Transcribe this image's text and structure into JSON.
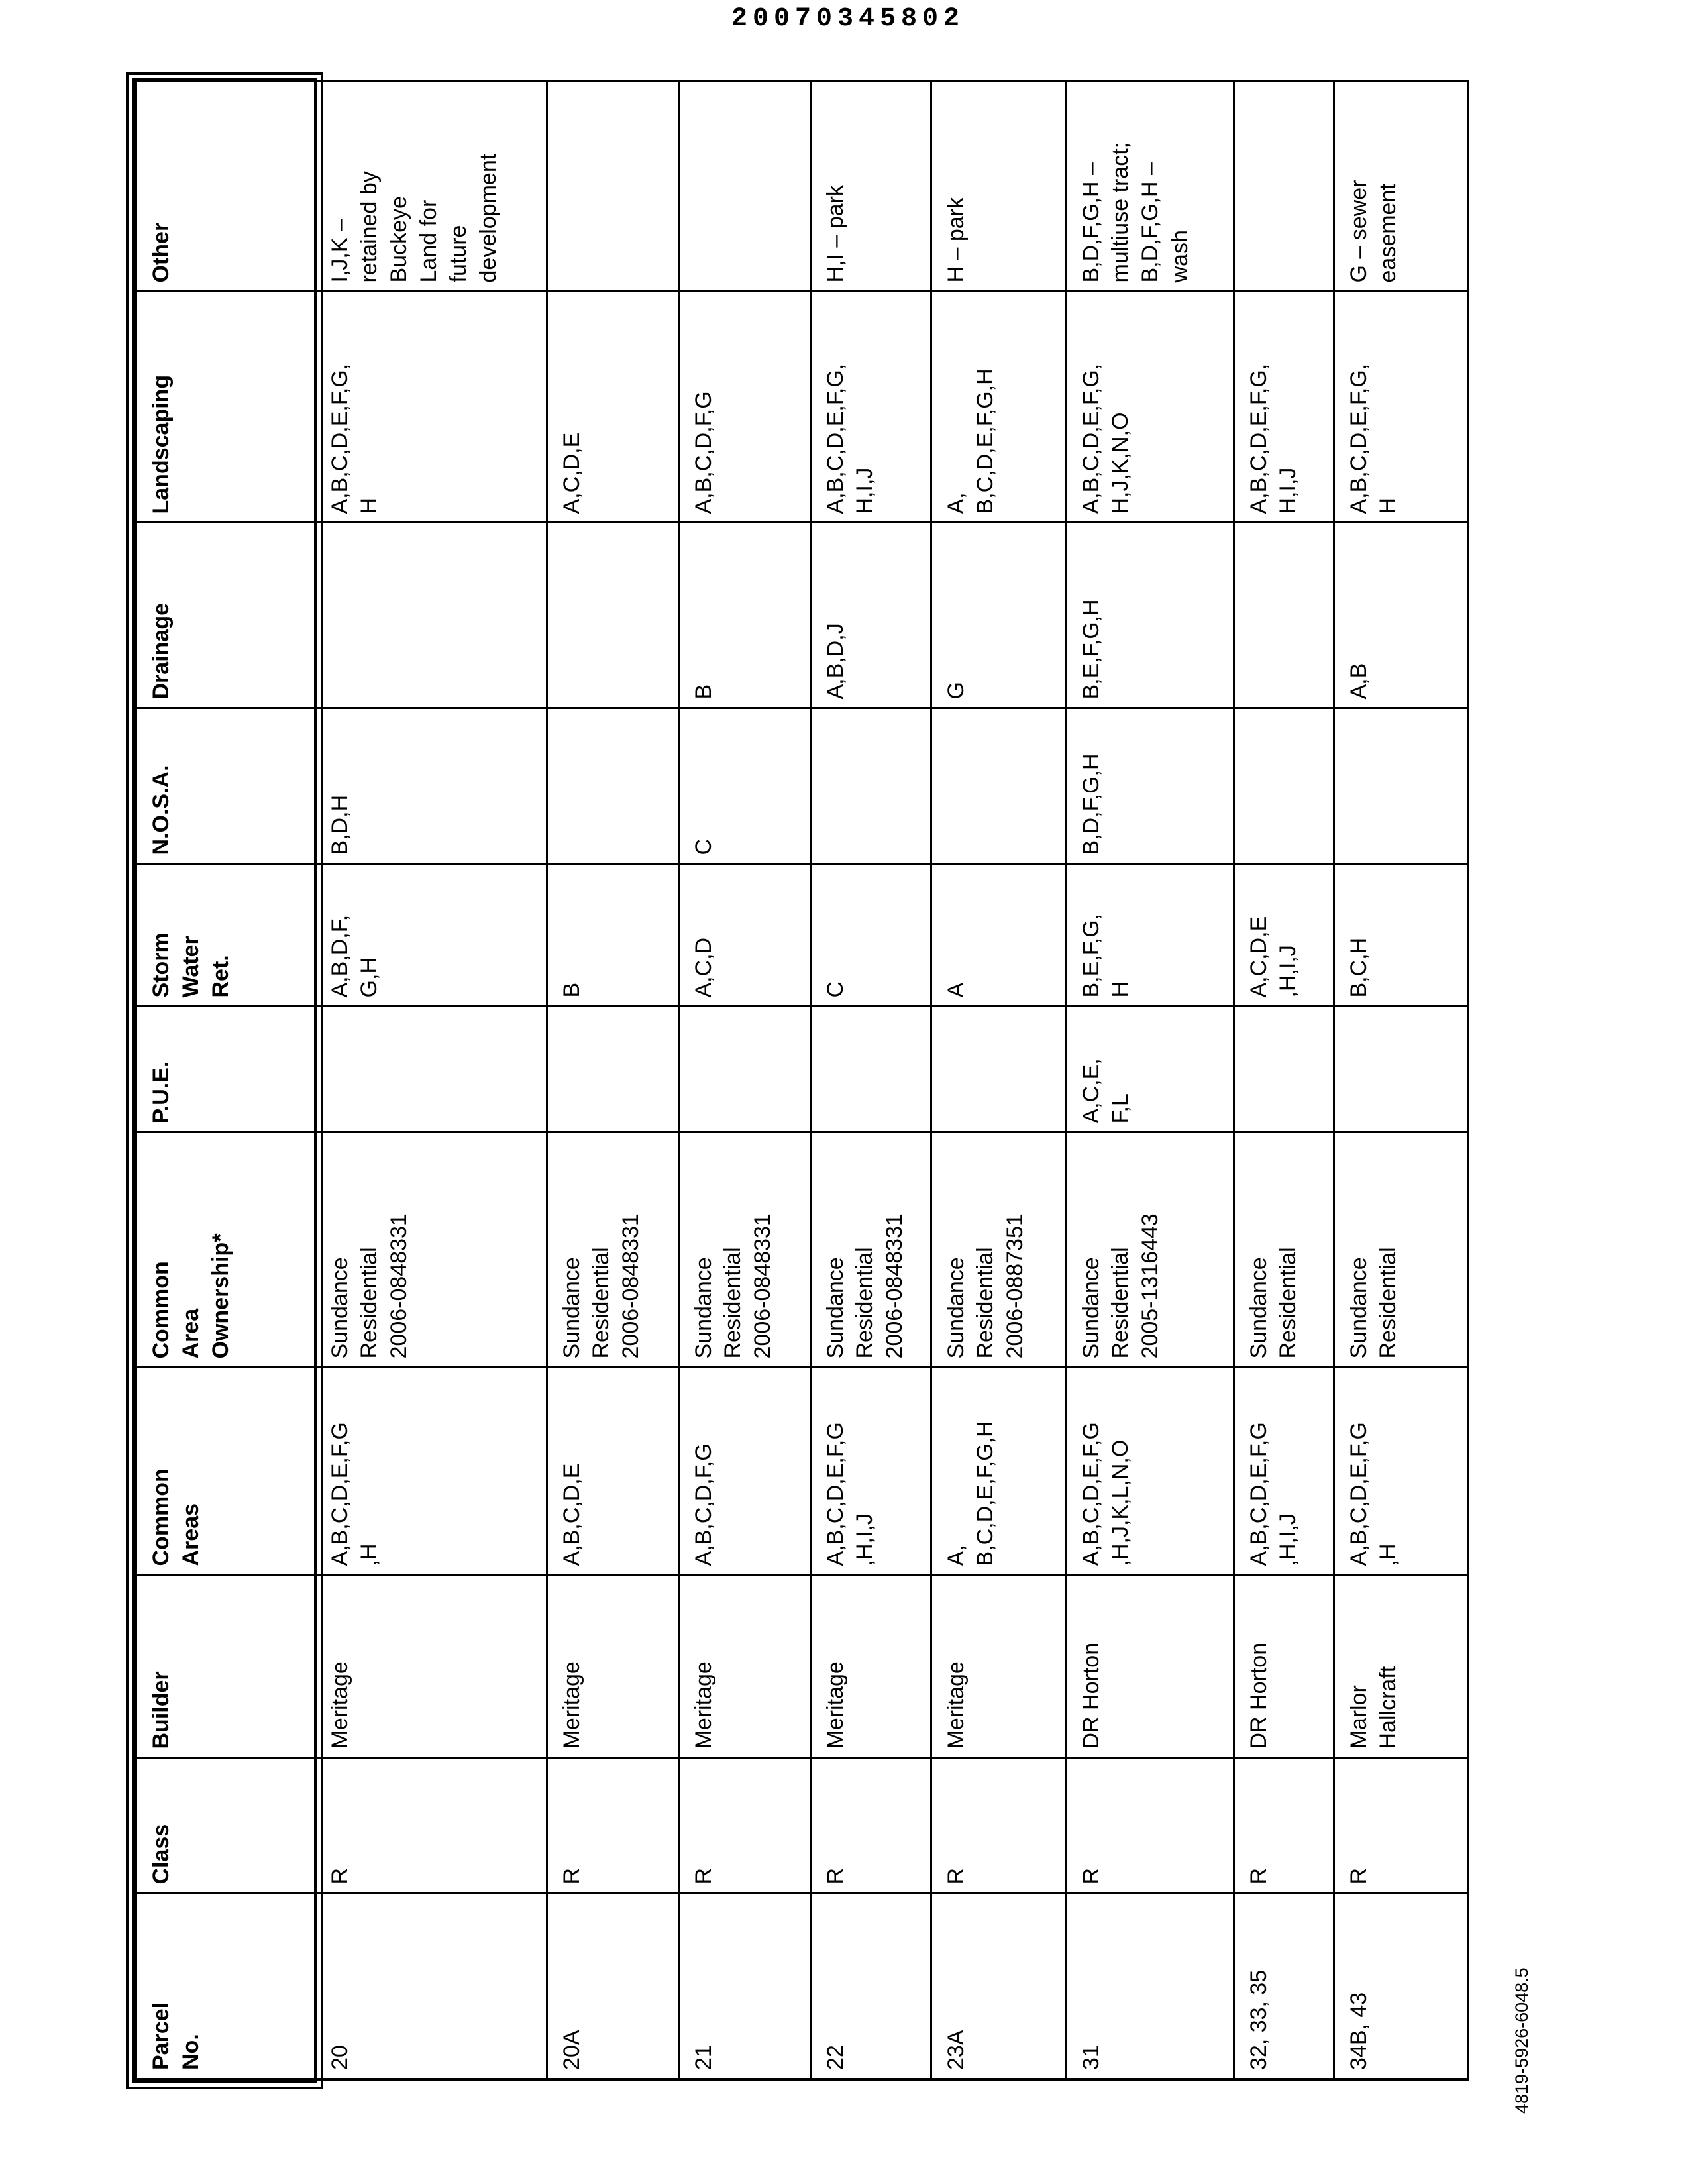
{
  "doc_number": "20070345802",
  "footer_code": "4819-5926-6048.5",
  "table": {
    "columns": [
      "Parcel\nNo.",
      "Class",
      "Builder",
      "Common\nAreas",
      "Common\nArea\nOwnership*",
      "P.U.E.",
      "Storm\nWater\nRet.",
      "N.O.S.A.",
      "Drainage",
      "Landscaping",
      "Other"
    ],
    "rows": [
      [
        "20",
        "R",
        "Meritage",
        "A,B,C,D,E,F,G\n,H",
        "Sundance\nResidential\n2006-0848331",
        "",
        "A,B,D,F,\nG,H",
        "B,D,H",
        "",
        "A,B,C,D,E,F,G,\nH",
        "I,J,K –\nretained by\nBuckeye\nLand for\nfuture\ndevelopment"
      ],
      [
        "20A",
        "R",
        "Meritage",
        "A,B,C,D,E",
        "Sundance\nResidential\n2006-0848331",
        "",
        "B",
        "",
        "",
        "A,C,D,E",
        ""
      ],
      [
        "21",
        "R",
        "Meritage",
        "A,B,C,D,F,G",
        "Sundance\nResidential\n2006-0848331",
        "",
        "A,C,D",
        "C",
        "B",
        "A,B,C,D,F,G",
        ""
      ],
      [
        "22",
        "R",
        "Meritage",
        "A,B,C,D,E,F,G\n,H,I,J",
        "Sundance\nResidential\n2006-0848331",
        "",
        "C",
        "",
        "A,B,D,J",
        "A,B,C,D,E,F,G,\nH,I,J",
        "H,I – park"
      ],
      [
        "23A",
        "R",
        "Meritage",
        "A,\nB,C,D,E,F,G,H",
        "Sundance\nResidential\n2006-0887351",
        "",
        "A",
        "",
        "G",
        "A,\nB,C,D,E,F,G,H",
        "H – park"
      ],
      [
        "31",
        "R",
        "DR Horton",
        "A,B,C,D,E,F,G\n,H,J,K,L,N,O",
        "Sundance\nResidential\n2005-1316443",
        "A,C,E,\nF,L",
        "B,E,F,G,\nH",
        "B,D,F,G,H",
        "B,E,F,G,H",
        "A,B,C,D,E,F,G,\nH,J,K,N,O",
        "B,D,F,G,H –\nmultiuse tract;\nB,D,F,G,H –\nwash"
      ],
      [
        "32, 33, 35",
        "R",
        "DR Horton",
        "A,B,C,D,E,F,G\n,H,I,J",
        "Sundance\nResidential",
        "",
        "A,C,D,E\n,H,I,J",
        "",
        "",
        "A,B,C,D,E,F,G,\nH,I,J",
        ""
      ],
      [
        "34B, 43",
        "R",
        "Marlor\nHallcraft",
        "A,B,C,D,E,F,G\n,H",
        "Sundance\nResidential",
        "",
        "B,C,H",
        "",
        "A,B",
        "A,B,C,D,E,F,G,\nH",
        "G – sewer\neasement"
      ]
    ]
  }
}
